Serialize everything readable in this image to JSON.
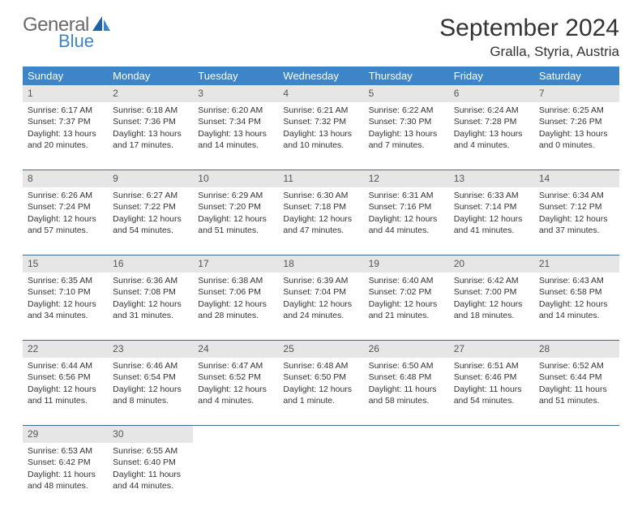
{
  "logo": {
    "word1": "General",
    "word2": "Blue"
  },
  "title": "September 2024",
  "location": "Gralla, Styria, Austria",
  "colors": {
    "header_bg": "#3d85c6",
    "header_text": "#ffffff",
    "daynum_bg": "#e6e6e6",
    "row_divider": "#3d6a9a",
    "body_text": "#333333",
    "logo_gray": "#6a6a6a",
    "logo_blue": "#3d85c6"
  },
  "weekdays": [
    "Sunday",
    "Monday",
    "Tuesday",
    "Wednesday",
    "Thursday",
    "Friday",
    "Saturday"
  ],
  "weeks": [
    {
      "days": [
        {
          "n": "1",
          "sunrise": "6:17 AM",
          "sunset": "7:37 PM",
          "daylight": "13 hours and 20 minutes."
        },
        {
          "n": "2",
          "sunrise": "6:18 AM",
          "sunset": "7:36 PM",
          "daylight": "13 hours and 17 minutes."
        },
        {
          "n": "3",
          "sunrise": "6:20 AM",
          "sunset": "7:34 PM",
          "daylight": "13 hours and 14 minutes."
        },
        {
          "n": "4",
          "sunrise": "6:21 AM",
          "sunset": "7:32 PM",
          "daylight": "13 hours and 10 minutes."
        },
        {
          "n": "5",
          "sunrise": "6:22 AM",
          "sunset": "7:30 PM",
          "daylight": "13 hours and 7 minutes."
        },
        {
          "n": "6",
          "sunrise": "6:24 AM",
          "sunset": "7:28 PM",
          "daylight": "13 hours and 4 minutes."
        },
        {
          "n": "7",
          "sunrise": "6:25 AM",
          "sunset": "7:26 PM",
          "daylight": "13 hours and 0 minutes."
        }
      ]
    },
    {
      "days": [
        {
          "n": "8",
          "sunrise": "6:26 AM",
          "sunset": "7:24 PM",
          "daylight": "12 hours and 57 minutes."
        },
        {
          "n": "9",
          "sunrise": "6:27 AM",
          "sunset": "7:22 PM",
          "daylight": "12 hours and 54 minutes."
        },
        {
          "n": "10",
          "sunrise": "6:29 AM",
          "sunset": "7:20 PM",
          "daylight": "12 hours and 51 minutes."
        },
        {
          "n": "11",
          "sunrise": "6:30 AM",
          "sunset": "7:18 PM",
          "daylight": "12 hours and 47 minutes."
        },
        {
          "n": "12",
          "sunrise": "6:31 AM",
          "sunset": "7:16 PM",
          "daylight": "12 hours and 44 minutes."
        },
        {
          "n": "13",
          "sunrise": "6:33 AM",
          "sunset": "7:14 PM",
          "daylight": "12 hours and 41 minutes."
        },
        {
          "n": "14",
          "sunrise": "6:34 AM",
          "sunset": "7:12 PM",
          "daylight": "12 hours and 37 minutes."
        }
      ]
    },
    {
      "days": [
        {
          "n": "15",
          "sunrise": "6:35 AM",
          "sunset": "7:10 PM",
          "daylight": "12 hours and 34 minutes."
        },
        {
          "n": "16",
          "sunrise": "6:36 AM",
          "sunset": "7:08 PM",
          "daylight": "12 hours and 31 minutes."
        },
        {
          "n": "17",
          "sunrise": "6:38 AM",
          "sunset": "7:06 PM",
          "daylight": "12 hours and 28 minutes."
        },
        {
          "n": "18",
          "sunrise": "6:39 AM",
          "sunset": "7:04 PM",
          "daylight": "12 hours and 24 minutes."
        },
        {
          "n": "19",
          "sunrise": "6:40 AM",
          "sunset": "7:02 PM",
          "daylight": "12 hours and 21 minutes."
        },
        {
          "n": "20",
          "sunrise": "6:42 AM",
          "sunset": "7:00 PM",
          "daylight": "12 hours and 18 minutes."
        },
        {
          "n": "21",
          "sunrise": "6:43 AM",
          "sunset": "6:58 PM",
          "daylight": "12 hours and 14 minutes."
        }
      ]
    },
    {
      "days": [
        {
          "n": "22",
          "sunrise": "6:44 AM",
          "sunset": "6:56 PM",
          "daylight": "12 hours and 11 minutes."
        },
        {
          "n": "23",
          "sunrise": "6:46 AM",
          "sunset": "6:54 PM",
          "daylight": "12 hours and 8 minutes."
        },
        {
          "n": "24",
          "sunrise": "6:47 AM",
          "sunset": "6:52 PM",
          "daylight": "12 hours and 4 minutes."
        },
        {
          "n": "25",
          "sunrise": "6:48 AM",
          "sunset": "6:50 PM",
          "daylight": "12 hours and 1 minute."
        },
        {
          "n": "26",
          "sunrise": "6:50 AM",
          "sunset": "6:48 PM",
          "daylight": "11 hours and 58 minutes."
        },
        {
          "n": "27",
          "sunrise": "6:51 AM",
          "sunset": "6:46 PM",
          "daylight": "11 hours and 54 minutes."
        },
        {
          "n": "28",
          "sunrise": "6:52 AM",
          "sunset": "6:44 PM",
          "daylight": "11 hours and 51 minutes."
        }
      ]
    },
    {
      "days": [
        {
          "n": "29",
          "sunrise": "6:53 AM",
          "sunset": "6:42 PM",
          "daylight": "11 hours and 48 minutes."
        },
        {
          "n": "30",
          "sunrise": "6:55 AM",
          "sunset": "6:40 PM",
          "daylight": "11 hours and 44 minutes."
        },
        null,
        null,
        null,
        null,
        null
      ]
    }
  ],
  "labels": {
    "sunrise": "Sunrise:",
    "sunset": "Sunset:",
    "daylight": "Daylight:"
  }
}
